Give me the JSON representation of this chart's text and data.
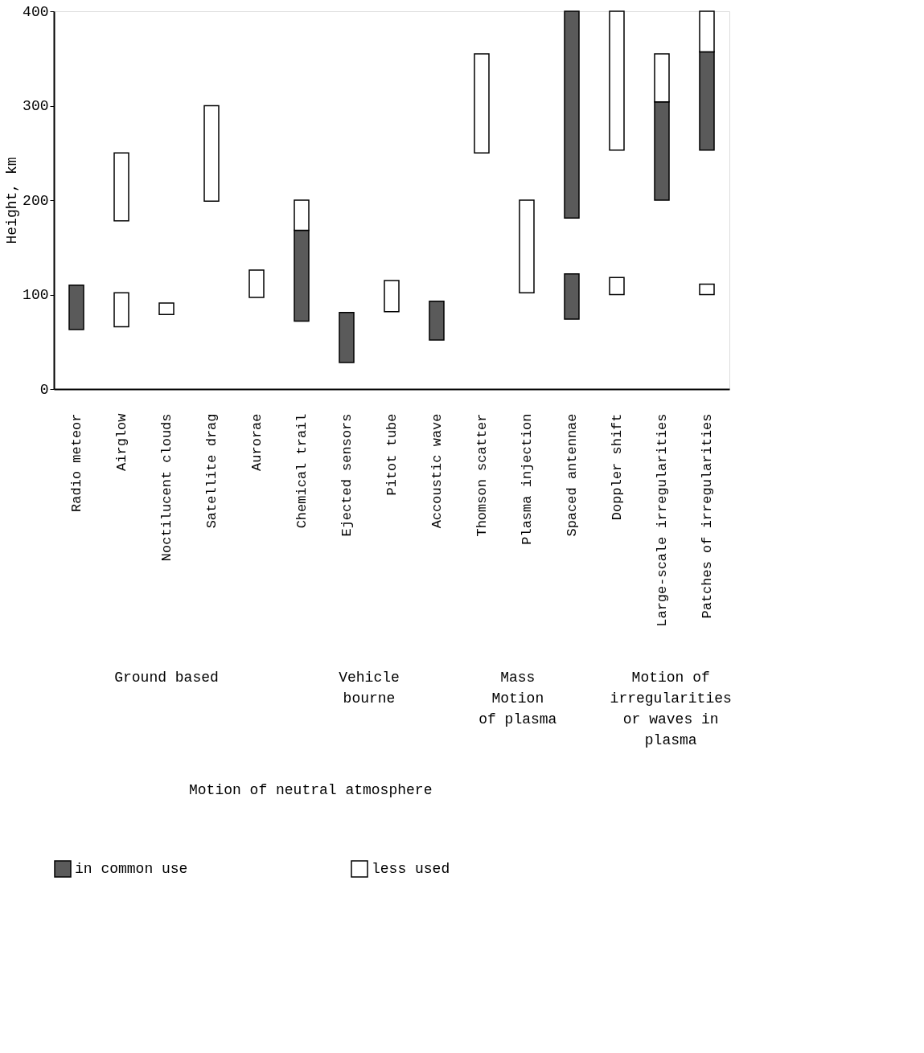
{
  "chart_data": {
    "type": "bar",
    "ylabel": "Height, km",
    "ylim": [
      0,
      400
    ],
    "yticks": [
      0,
      100,
      200,
      300,
      400
    ],
    "grid": false,
    "legend": "bottom",
    "categories": [
      "Radio meteor",
      "Airglow",
      "Noctilucent clouds",
      "Satellite drag",
      "Aurorae",
      "Chemical trail",
      "Ejected sensors",
      "Pitot tube",
      "Accoustic wave",
      "Thomson scatter",
      "Plasma injection",
      "Spaced antennae",
      "Doppler shift",
      "Large-scale irregularities",
      "Patches of irregularities"
    ],
    "series": [
      {
        "name": "in common use",
        "color": "#5a5a5a",
        "base": [
          63,
          null,
          null,
          null,
          null,
          72,
          28,
          null,
          52,
          null,
          null,
          181,
          null,
          200,
          253
        ],
        "values": [
          47,
          null,
          null,
          null,
          null,
          96,
          53,
          null,
          41,
          null,
          null,
          219,
          null,
          104,
          104
        ]
      },
      {
        "name": "less used",
        "color": "#ffffff",
        "base": [
          null,
          178,
          79,
          199,
          97,
          168,
          null,
          82,
          null,
          250,
          102,
          null,
          253,
          304,
          357
        ],
        "values": [
          null,
          72,
          12,
          101,
          29,
          32,
          null,
          33,
          null,
          105,
          98,
          null,
          147,
          51,
          43
        ]
      },
      {
        "color": "#5a5a5a",
        "base": [
          null,
          null,
          null,
          null,
          null,
          null,
          null,
          null,
          null,
          null,
          null,
          74,
          null,
          null,
          null
        ],
        "values": [
          null,
          null,
          null,
          null,
          null,
          null,
          null,
          null,
          null,
          null,
          null,
          48,
          null,
          null,
          null
        ]
      },
      {
        "color": "#ffffff",
        "base": [
          null,
          66,
          null,
          null,
          null,
          null,
          null,
          null,
          null,
          null,
          null,
          null,
          100,
          null,
          100
        ],
        "values": [
          null,
          36,
          null,
          null,
          null,
          null,
          null,
          null,
          null,
          null,
          null,
          null,
          18,
          null,
          11
        ]
      }
    ],
    "annotations": [
      "Ground based",
      "Vehicle\n   bourne",
      "Mass\nMotion\nof plasma",
      "Motion of\nirregularities\nor waves in\nplasma",
      "Motion of neutral atmosphere"
    ]
  }
}
